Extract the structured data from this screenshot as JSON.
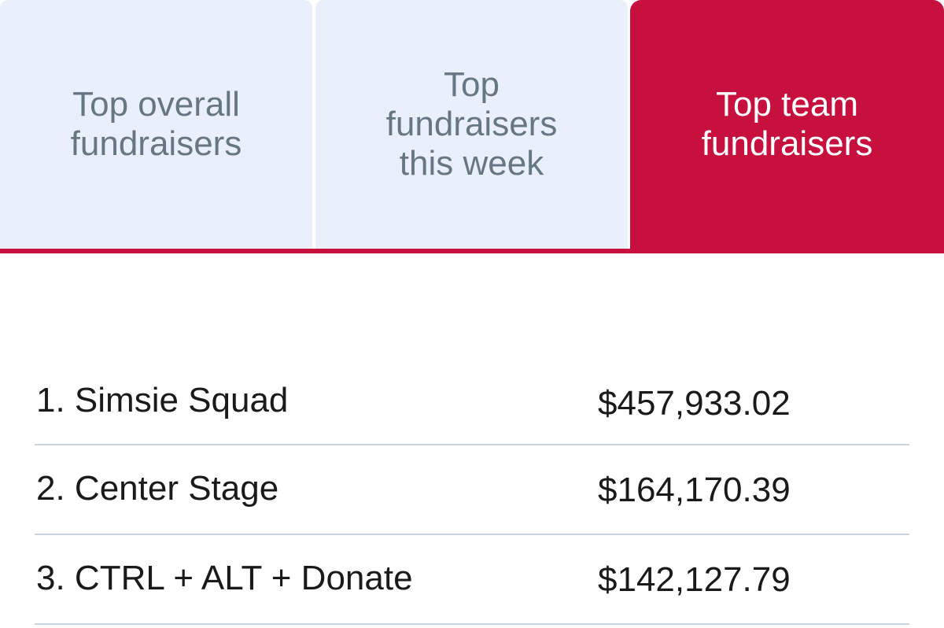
{
  "tabs": [
    {
      "label": "Top overall fundraisers",
      "active": false
    },
    {
      "label": "Top fundraisers this week",
      "active": false
    },
    {
      "label": "Top team fundraisers",
      "active": true
    }
  ],
  "leaderboard": [
    {
      "name": "1. Simsie Squad",
      "amount": "$457,933.02"
    },
    {
      "name": "2. Center Stage",
      "amount": "$164,170.39"
    },
    {
      "name": "3. CTRL + ALT + Donate",
      "amount": "$142,127.79"
    }
  ],
  "colors": {
    "accent": "#c8103e",
    "inactive_tab_bg": "#e9f0fb",
    "inactive_tab_text": "#677684",
    "divider": "#c9d3da"
  }
}
